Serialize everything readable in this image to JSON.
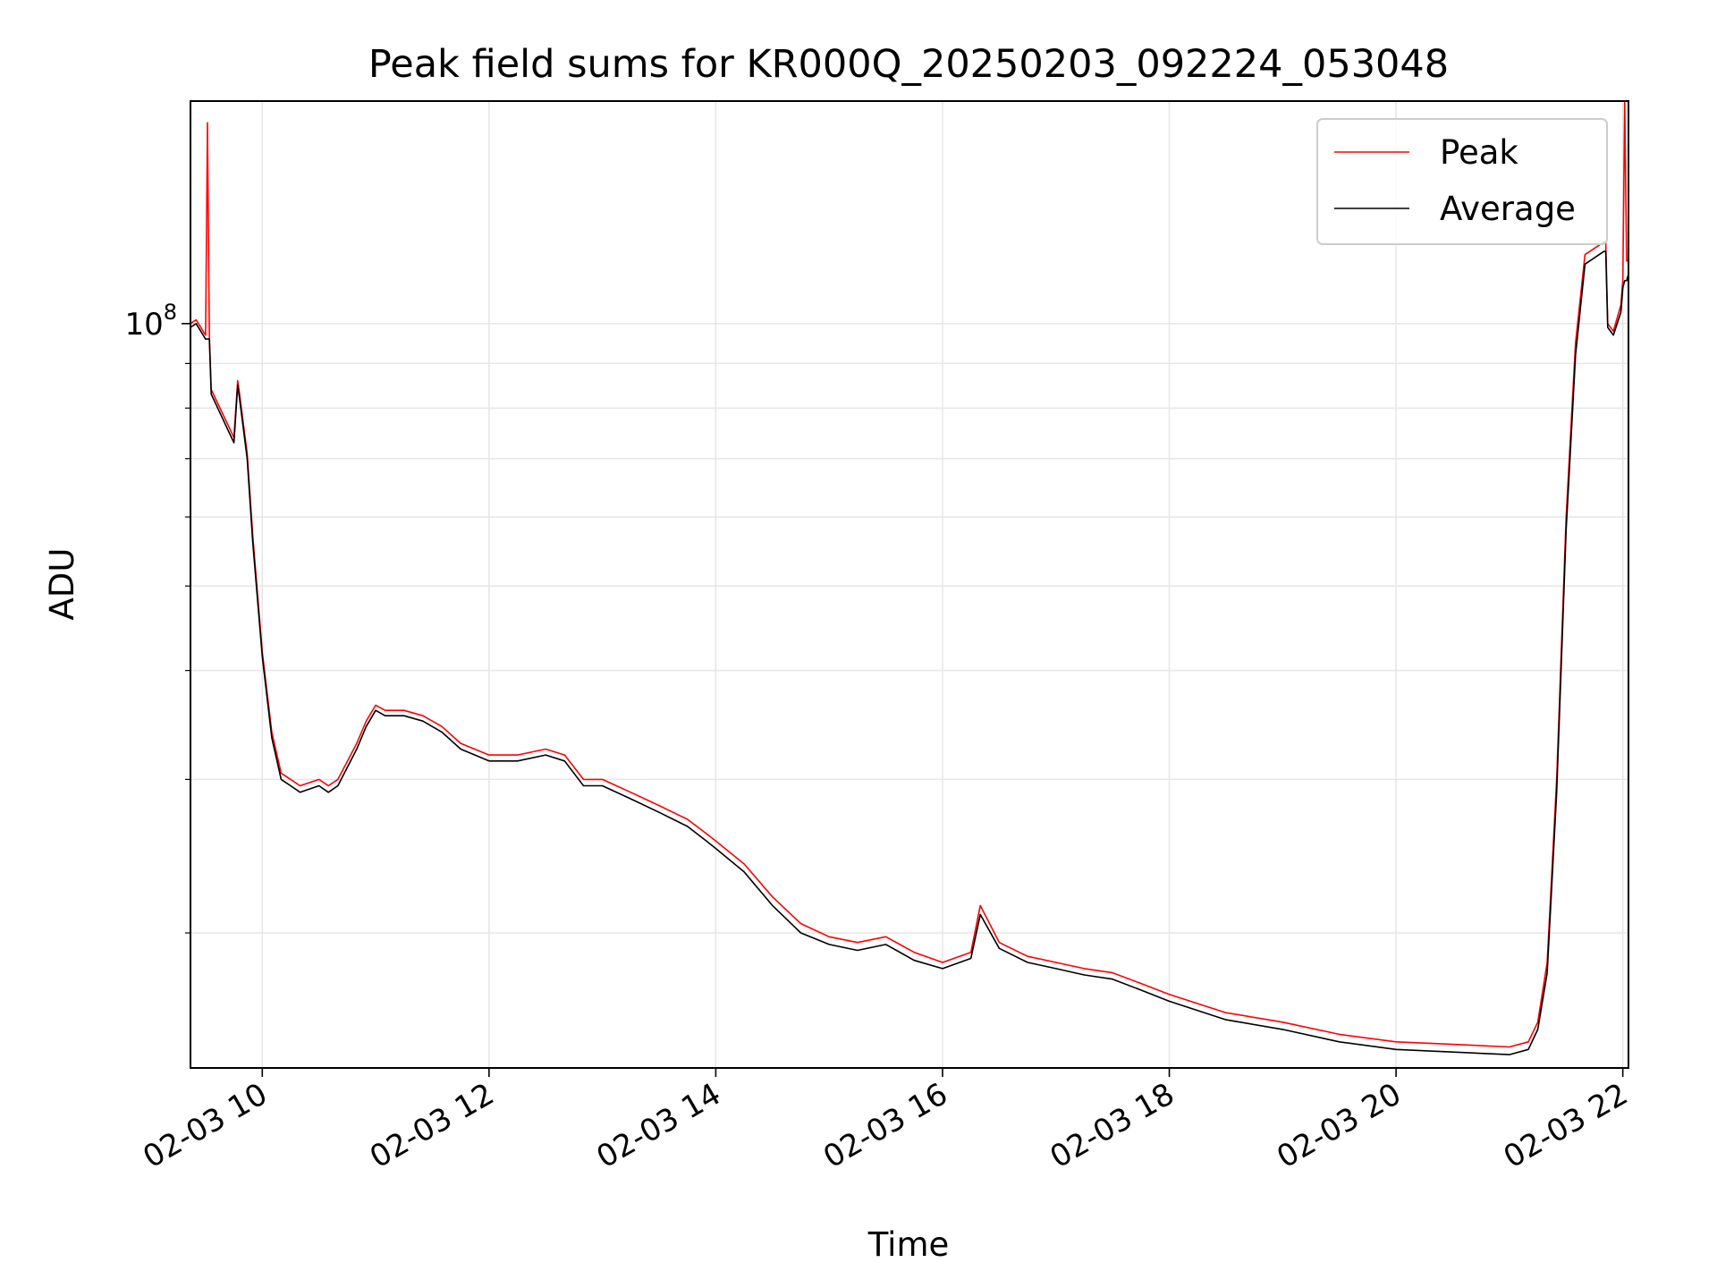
{
  "chart_data": {
    "type": "line",
    "title": "Peak field sums for KR000Q_20250203_092224_053048",
    "xlabel": "Time",
    "ylabel": "ADU",
    "y_scale": "log",
    "x_range": [
      "2025-02-03 09:22",
      "2025-02-03 22:03"
    ],
    "ylim": [
      14000000,
      180000000
    ],
    "x_ticks": [
      "02-03 10",
      "02-03 12",
      "02-03 14",
      "02-03 16",
      "02-03 18",
      "02-03 20",
      "02-03 22"
    ],
    "y_ticks": [
      {
        "base": "10",
        "exp": "8",
        "value": 100000000
      }
    ],
    "grid": true,
    "legend_position": "top-right",
    "series": [
      {
        "name": "Peak",
        "color": "#ff0000",
        "x": [
          "2025-02-03 09:22",
          "2025-02-03 09:25",
          "2025-02-03 09:30",
          "2025-02-03 09:31",
          "2025-02-03 09:32",
          "2025-02-03 09:33",
          "2025-02-03 09:45",
          "2025-02-03 09:47",
          "2025-02-03 09:48",
          "2025-02-03 09:52",
          "2025-02-03 09:55",
          "2025-02-03 10:00",
          "2025-02-03 10:05",
          "2025-02-03 10:10",
          "2025-02-03 10:15",
          "2025-02-03 10:20",
          "2025-02-03 10:30",
          "2025-02-03 10:35",
          "2025-02-03 10:40",
          "2025-02-03 10:50",
          "2025-02-03 10:55",
          "2025-02-03 11:00",
          "2025-02-03 11:05",
          "2025-02-03 11:15",
          "2025-02-03 11:25",
          "2025-02-03 11:35",
          "2025-02-03 11:45",
          "2025-02-03 12:00",
          "2025-02-03 12:15",
          "2025-02-03 12:30",
          "2025-02-03 12:40",
          "2025-02-03 12:50",
          "2025-02-03 13:00",
          "2025-02-03 13:15",
          "2025-02-03 13:30",
          "2025-02-03 13:45",
          "2025-02-03 13:55",
          "2025-02-03 14:00",
          "2025-02-03 14:15",
          "2025-02-03 14:30",
          "2025-02-03 14:45",
          "2025-02-03 15:00",
          "2025-02-03 15:15",
          "2025-02-03 15:30",
          "2025-02-03 15:45",
          "2025-02-03 16:00",
          "2025-02-03 16:15",
          "2025-02-03 16:20",
          "2025-02-03 16:30",
          "2025-02-03 16:45",
          "2025-02-03 17:00",
          "2025-02-03 17:15",
          "2025-02-03 17:30",
          "2025-02-03 17:45",
          "2025-02-03 18:00",
          "2025-02-03 18:30",
          "2025-02-03 19:00",
          "2025-02-03 19:30",
          "2025-02-03 20:00",
          "2025-02-03 20:30",
          "2025-02-03 21:00",
          "2025-02-03 21:10",
          "2025-02-03 21:15",
          "2025-02-03 21:20",
          "2025-02-03 21:25",
          "2025-02-03 21:30",
          "2025-02-03 21:35",
          "2025-02-03 21:40",
          "2025-02-03 21:45",
          "2025-02-03 21:50",
          "2025-02-03 21:51",
          "2025-02-03 21:52",
          "2025-02-03 21:55",
          "2025-02-03 21:59",
          "2025-02-03 22:00",
          "2025-02-03 22:01",
          "2025-02-03 22:02",
          "2025-02-03 22:03"
        ],
        "values": [
          100000000,
          101000000,
          97000000,
          170000000,
          97000000,
          84000000,
          74000000,
          86000000,
          83000000,
          71000000,
          57000000,
          42000000,
          34000000,
          30500000,
          30000000,
          29500000,
          30000000,
          29500000,
          30000000,
          33000000,
          35000000,
          36500000,
          36000000,
          36000000,
          35500000,
          34500000,
          33000000,
          32000000,
          32000000,
          32500000,
          32000000,
          30000000,
          30000000,
          29000000,
          28000000,
          27000000,
          26000000,
          25500000,
          24000000,
          22000000,
          20500000,
          19800000,
          19500000,
          19800000,
          19000000,
          18500000,
          19000000,
          21500000,
          19500000,
          18800000,
          18500000,
          18200000,
          18000000,
          17500000,
          17000000,
          16200000,
          15800000,
          15300000,
          15000000,
          14900000,
          14800000,
          15000000,
          15800000,
          18500000,
          30000000,
          60000000,
          95000000,
          120000000,
          122000000,
          124000000,
          124000000,
          100000000,
          98000000,
          105000000,
          112000000,
          180000000,
          118000000,
          118000000
        ]
      },
      {
        "name": "Average",
        "color": "#000000",
        "x": [
          "2025-02-03 09:22",
          "2025-02-03 09:25",
          "2025-02-03 09:30",
          "2025-02-03 09:31",
          "2025-02-03 09:32",
          "2025-02-03 09:33",
          "2025-02-03 09:45",
          "2025-02-03 09:47",
          "2025-02-03 09:48",
          "2025-02-03 09:52",
          "2025-02-03 09:55",
          "2025-02-03 10:00",
          "2025-02-03 10:05",
          "2025-02-03 10:10",
          "2025-02-03 10:15",
          "2025-02-03 10:20",
          "2025-02-03 10:30",
          "2025-02-03 10:35",
          "2025-02-03 10:40",
          "2025-02-03 10:50",
          "2025-02-03 10:55",
          "2025-02-03 11:00",
          "2025-02-03 11:05",
          "2025-02-03 11:15",
          "2025-02-03 11:25",
          "2025-02-03 11:35",
          "2025-02-03 11:45",
          "2025-02-03 12:00",
          "2025-02-03 12:15",
          "2025-02-03 12:30",
          "2025-02-03 12:40",
          "2025-02-03 12:50",
          "2025-02-03 13:00",
          "2025-02-03 13:15",
          "2025-02-03 13:30",
          "2025-02-03 13:45",
          "2025-02-03 13:55",
          "2025-02-03 14:00",
          "2025-02-03 14:15",
          "2025-02-03 14:30",
          "2025-02-03 14:45",
          "2025-02-03 15:00",
          "2025-02-03 15:15",
          "2025-02-03 15:30",
          "2025-02-03 15:45",
          "2025-02-03 16:00",
          "2025-02-03 16:15",
          "2025-02-03 16:20",
          "2025-02-03 16:30",
          "2025-02-03 16:45",
          "2025-02-03 17:00",
          "2025-02-03 17:15",
          "2025-02-03 17:30",
          "2025-02-03 17:45",
          "2025-02-03 18:00",
          "2025-02-03 18:30",
          "2025-02-03 19:00",
          "2025-02-03 19:30",
          "2025-02-03 20:00",
          "2025-02-03 20:30",
          "2025-02-03 21:00",
          "2025-02-03 21:10",
          "2025-02-03 21:15",
          "2025-02-03 21:20",
          "2025-02-03 21:25",
          "2025-02-03 21:30",
          "2025-02-03 21:35",
          "2025-02-03 21:40",
          "2025-02-03 21:45",
          "2025-02-03 21:50",
          "2025-02-03 21:51",
          "2025-02-03 21:52",
          "2025-02-03 21:55",
          "2025-02-03 21:59",
          "2025-02-03 22:00",
          "2025-02-03 22:01",
          "2025-02-03 22:02",
          "2025-02-03 22:03"
        ],
        "values": [
          99000000,
          100000000,
          96000000,
          96000000,
          96000000,
          83000000,
          73000000,
          85000000,
          82000000,
          70000000,
          56000000,
          41500000,
          33500000,
          30000000,
          29500000,
          29000000,
          29500000,
          29000000,
          29500000,
          32500000,
          34500000,
          36000000,
          35500000,
          35500000,
          35000000,
          34000000,
          32500000,
          31500000,
          31500000,
          32000000,
          31500000,
          29500000,
          29500000,
          28500000,
          27500000,
          26500000,
          25500000,
          25000000,
          23500000,
          21500000,
          20000000,
          19400000,
          19100000,
          19400000,
          18600000,
          18200000,
          18700000,
          21000000,
          19200000,
          18500000,
          18200000,
          17900000,
          17700000,
          17200000,
          16700000,
          15900000,
          15500000,
          15000000,
          14700000,
          14600000,
          14500000,
          14700000,
          15500000,
          18000000,
          29000000,
          58000000,
          92000000,
          117000000,
          119000000,
          121000000,
          121000000,
          99000000,
          97000000,
          103000000,
          110000000,
          112000000,
          112000000,
          114000000
        ]
      }
    ]
  }
}
